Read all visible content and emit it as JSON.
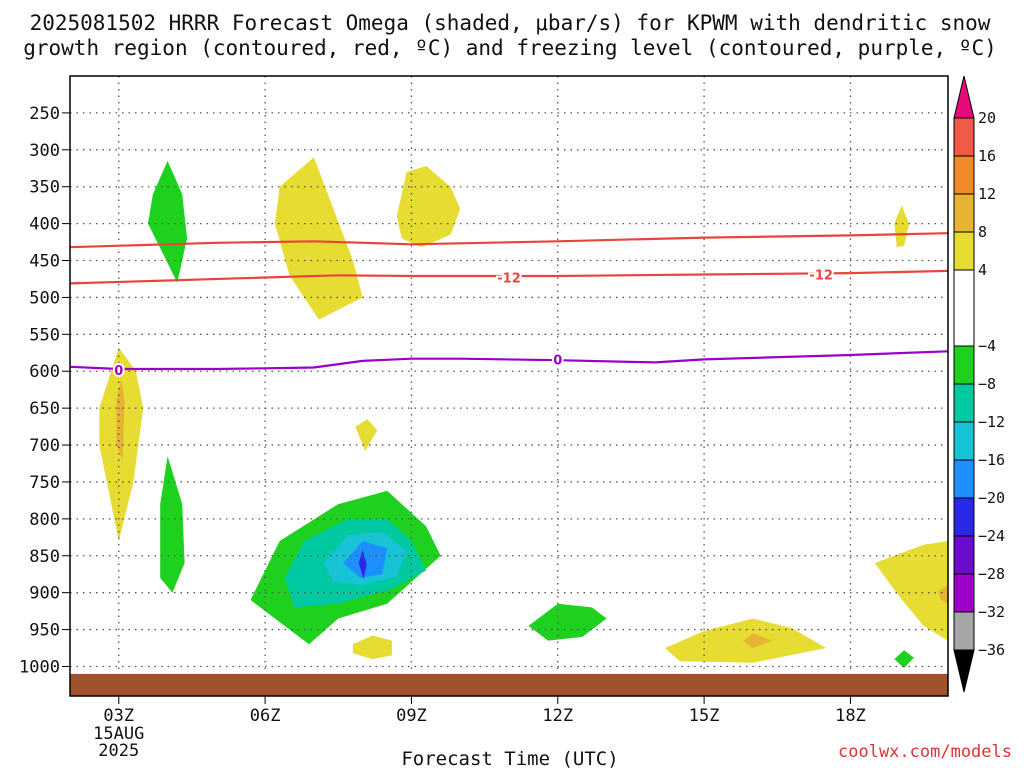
{
  "header": {
    "title_line1": "2025081502 HRRR Forecast Omega (shaded, μbar/s) for KPWM with dendritic snow",
    "title_line2": "growth region (contoured, red, ºC) and freezing level (contoured, purple, ºC)"
  },
  "footer": {
    "xlabel": "Forecast Time (UTC)",
    "credit": "coolwx.com/models"
  },
  "chart_data": {
    "type": "heatmap",
    "x_axis": {
      "label": "Forecast Time (UTC)",
      "unit": "hour",
      "range": [
        2,
        20.0
      ],
      "ticks": [
        {
          "hour": 3,
          "label": "03Z",
          "sub": [
            "15AUG",
            "2025"
          ]
        },
        {
          "hour": 6,
          "label": "06Z"
        },
        {
          "hour": 9,
          "label": "09Z"
        },
        {
          "hour": 12,
          "label": "12Z"
        },
        {
          "hour": 15,
          "label": "15Z"
        },
        {
          "hour": 18,
          "label": "18Z"
        }
      ]
    },
    "y_axis": {
      "unit": "hPa",
      "range": [
        200,
        1040
      ],
      "ticks": [
        250,
        300,
        350,
        400,
        450,
        500,
        550,
        600,
        650,
        700,
        750,
        800,
        850,
        900,
        950,
        1000
      ]
    },
    "grid": true,
    "colorbar": {
      "unit": "μbar/s",
      "bands": [
        {
          "range": [
            -40,
            -36
          ],
          "color": "#000000"
        },
        {
          "range": [
            -36,
            -32
          ],
          "color": "#a6a6a6"
        },
        {
          "range": [
            -32,
            -28
          ],
          "color": "#9f00c8"
        },
        {
          "range": [
            -28,
            -24
          ],
          "color": "#6a0dcf"
        },
        {
          "range": [
            -24,
            -20
          ],
          "color": "#2a2ae6"
        },
        {
          "range": [
            -20,
            -16
          ],
          "color": "#1e8fff"
        },
        {
          "range": [
            -16,
            -12
          ],
          "color": "#19c3d6"
        },
        {
          "range": [
            -12,
            -8
          ],
          "color": "#00c8a0"
        },
        {
          "range": [
            -8,
            -4
          ],
          "color": "#1ed11e"
        },
        {
          "range": [
            -4,
            4
          ],
          "color": "#ffffff"
        },
        {
          "range": [
            4,
            8
          ],
          "color": "#e6dc32"
        },
        {
          "range": [
            8,
            12
          ],
          "color": "#e6b432"
        },
        {
          "range": [
            12,
            16
          ],
          "color": "#f08c28"
        },
        {
          "range": [
            16,
            20
          ],
          "color": "#f05a46"
        },
        {
          "range": [
            20,
            24
          ],
          "color": "#e60a78"
        }
      ],
      "labels": [
        "20",
        "16",
        "12",
        "8",
        "4",
        "−4",
        "−8",
        "−12",
        "−16",
        "−20",
        "−24",
        "−28",
        "−32",
        "−36"
      ]
    },
    "contours": [
      {
        "kind": "dendritic_upper",
        "color": "#e8463c",
        "label": "",
        "points": [
          [
            2.0,
            432
          ],
          [
            5.0,
            426
          ],
          [
            7.0,
            424
          ],
          [
            9.0,
            428
          ],
          [
            12.0,
            424
          ],
          [
            15.0,
            419
          ],
          [
            18.0,
            416
          ],
          [
            20.0,
            413
          ]
        ]
      },
      {
        "kind": "dendritic_lower",
        "color": "#e8463c",
        "label": "-12",
        "label_at": [
          [
            11.0,
            473
          ],
          [
            17.4,
            469
          ]
        ],
        "points": [
          [
            2.0,
            481
          ],
          [
            4.0,
            477
          ],
          [
            6.0,
            473
          ],
          [
            7.5,
            470
          ],
          [
            9.0,
            471
          ],
          [
            12.0,
            471
          ],
          [
            15.0,
            469
          ],
          [
            18.0,
            467
          ],
          [
            20.0,
            464
          ]
        ]
      },
      {
        "kind": "freezing_level",
        "color": "#9a00c8",
        "label": "0",
        "label_at": [
          [
            3.0,
            598
          ],
          [
            12.0,
            584
          ]
        ],
        "points": [
          [
            2.0,
            594
          ],
          [
            3.0,
            597
          ],
          [
            5.0,
            597
          ],
          [
            6.0,
            596
          ],
          [
            7.0,
            595
          ],
          [
            8.0,
            586
          ],
          [
            9.0,
            583
          ],
          [
            10.0,
            583
          ],
          [
            12.0,
            585
          ],
          [
            14.0,
            588
          ],
          [
            15.0,
            584
          ],
          [
            18.0,
            578
          ],
          [
            20.0,
            573
          ]
        ]
      }
    ],
    "regions": [
      {
        "band": "4 to 8",
        "color": "#e6dc32",
        "poly": [
          [
            2.6,
            650
          ],
          [
            3.0,
            568
          ],
          [
            3.35,
            600
          ],
          [
            3.5,
            650
          ],
          [
            3.3,
            750
          ],
          [
            3.0,
            830
          ],
          [
            2.6,
            700
          ]
        ]
      },
      {
        "band": "8 to 12",
        "color": "#e6b432",
        "poly": [
          [
            2.95,
            640
          ],
          [
            3.05,
            610
          ],
          [
            3.12,
            640
          ],
          [
            3.08,
            720
          ],
          [
            2.95,
            700
          ]
        ]
      },
      {
        "band": "4 to 8",
        "color": "#e6dc32",
        "poly": [
          [
            6.3,
            350
          ],
          [
            7.0,
            310
          ],
          [
            7.4,
            380
          ],
          [
            7.8,
            450
          ],
          [
            8.0,
            500
          ],
          [
            7.1,
            530
          ],
          [
            6.5,
            470
          ],
          [
            6.2,
            400
          ]
        ]
      },
      {
        "band": "4 to 8",
        "color": "#e6dc32",
        "poly": [
          [
            8.9,
            330
          ],
          [
            9.3,
            322
          ],
          [
            9.8,
            350
          ],
          [
            10.0,
            380
          ],
          [
            9.8,
            415
          ],
          [
            9.2,
            432
          ],
          [
            8.8,
            420
          ],
          [
            8.7,
            390
          ]
        ]
      },
      {
        "band": "-8 to -4",
        "color": "#1ed11e",
        "poly": [
          [
            4.0,
            315
          ],
          [
            4.3,
            360
          ],
          [
            4.4,
            420
          ],
          [
            4.2,
            480
          ],
          [
            3.9,
            440
          ],
          [
            3.6,
            400
          ],
          [
            3.7,
            360
          ]
        ]
      },
      {
        "band": "-8 to -4",
        "color": "#1ed11e",
        "poly": [
          [
            4.0,
            715
          ],
          [
            4.3,
            780
          ],
          [
            4.35,
            860
          ],
          [
            4.1,
            900
          ],
          [
            3.85,
            880
          ],
          [
            3.85,
            780
          ]
        ]
      },
      {
        "band": "4 to 8",
        "color": "#e6dc32",
        "poly": [
          [
            7.85,
            675
          ],
          [
            8.1,
            665
          ],
          [
            8.3,
            680
          ],
          [
            8.05,
            708
          ]
        ]
      },
      {
        "band": "-8 to -4",
        "color": "#1ed11e",
        "poly": [
          [
            5.7,
            910
          ],
          [
            6.3,
            830
          ],
          [
            7.5,
            780
          ],
          [
            8.5,
            762
          ],
          [
            9.3,
            810
          ],
          [
            9.6,
            850
          ],
          [
            8.5,
            915
          ],
          [
            7.5,
            935
          ],
          [
            6.9,
            970
          ]
        ]
      },
      {
        "band": "-12 to -8",
        "color": "#00c8a0",
        "poly": [
          [
            6.4,
            880
          ],
          [
            6.8,
            830
          ],
          [
            7.7,
            800
          ],
          [
            8.5,
            800
          ],
          [
            9.0,
            830
          ],
          [
            9.3,
            870
          ],
          [
            8.6,
            895
          ],
          [
            7.5,
            915
          ],
          [
            6.6,
            920
          ]
        ]
      },
      {
        "band": "-16 to -12",
        "color": "#19c3d6",
        "poly": [
          [
            7.2,
            860
          ],
          [
            7.7,
            822
          ],
          [
            8.4,
            818
          ],
          [
            8.9,
            843
          ],
          [
            8.7,
            878
          ],
          [
            8.0,
            890
          ],
          [
            7.4,
            885
          ]
        ]
      },
      {
        "band": "-20 to -16",
        "color": "#1e8fff",
        "poly": [
          [
            7.6,
            860
          ],
          [
            8.0,
            830
          ],
          [
            8.5,
            840
          ],
          [
            8.4,
            875
          ],
          [
            7.95,
            880
          ]
        ]
      },
      {
        "band": "-24 to -20",
        "color": "#2a2ae6",
        "poly": [
          [
            7.92,
            860
          ],
          [
            8.0,
            842
          ],
          [
            8.08,
            862
          ],
          [
            8.02,
            882
          ]
        ]
      },
      {
        "band": "4 to 8",
        "color": "#e6dc32",
        "poly": [
          [
            7.8,
            970
          ],
          [
            8.2,
            958
          ],
          [
            8.6,
            965
          ],
          [
            8.6,
            985
          ],
          [
            8.2,
            990
          ],
          [
            7.8,
            982
          ]
        ]
      },
      {
        "band": "-8 to -4",
        "color": "#1ed11e",
        "poly": [
          [
            11.4,
            945
          ],
          [
            12.0,
            915
          ],
          [
            12.7,
            920
          ],
          [
            13.0,
            935
          ],
          [
            12.5,
            960
          ],
          [
            11.8,
            965
          ]
        ]
      },
      {
        "band": "4 to 8",
        "color": "#e6dc32",
        "poly": [
          [
            14.2,
            975
          ],
          [
            15.0,
            952
          ],
          [
            16.0,
            935
          ],
          [
            16.8,
            948
          ],
          [
            17.5,
            975
          ],
          [
            16.0,
            995
          ],
          [
            14.5,
            993
          ]
        ]
      },
      {
        "band": "8 to 12",
        "color": "#e6b432",
        "poly": [
          [
            15.8,
            965
          ],
          [
            16.0,
            955
          ],
          [
            16.4,
            965
          ],
          [
            16.0,
            975
          ]
        ]
      },
      {
        "band": "4 to 8",
        "color": "#e6dc32",
        "poly": [
          [
            18.9,
            400
          ],
          [
            19.05,
            375
          ],
          [
            19.2,
            400
          ],
          [
            19.1,
            430
          ],
          [
            18.95,
            432
          ]
        ]
      },
      {
        "band": "4 to 8",
        "color": "#e6dc32",
        "poly": [
          [
            18.5,
            860
          ],
          [
            19.5,
            835
          ],
          [
            20.0,
            830
          ],
          [
            20.0,
            965
          ],
          [
            19.5,
            945
          ],
          [
            19.0,
            905
          ]
        ]
      },
      {
        "band": "8 to 12",
        "color": "#e6b432",
        "poly": [
          [
            19.8,
            898
          ],
          [
            20.0,
            890
          ],
          [
            20.0,
            915
          ],
          [
            19.85,
            910
          ]
        ]
      },
      {
        "band": "-8 to -4",
        "color": "#1ed11e",
        "poly": [
          [
            18.9,
            990
          ],
          [
            19.1,
            978
          ],
          [
            19.3,
            988
          ],
          [
            19.1,
            1002
          ]
        ]
      }
    ],
    "terrain": {
      "color": "#a0522d",
      "top_hpa": 1010
    }
  }
}
